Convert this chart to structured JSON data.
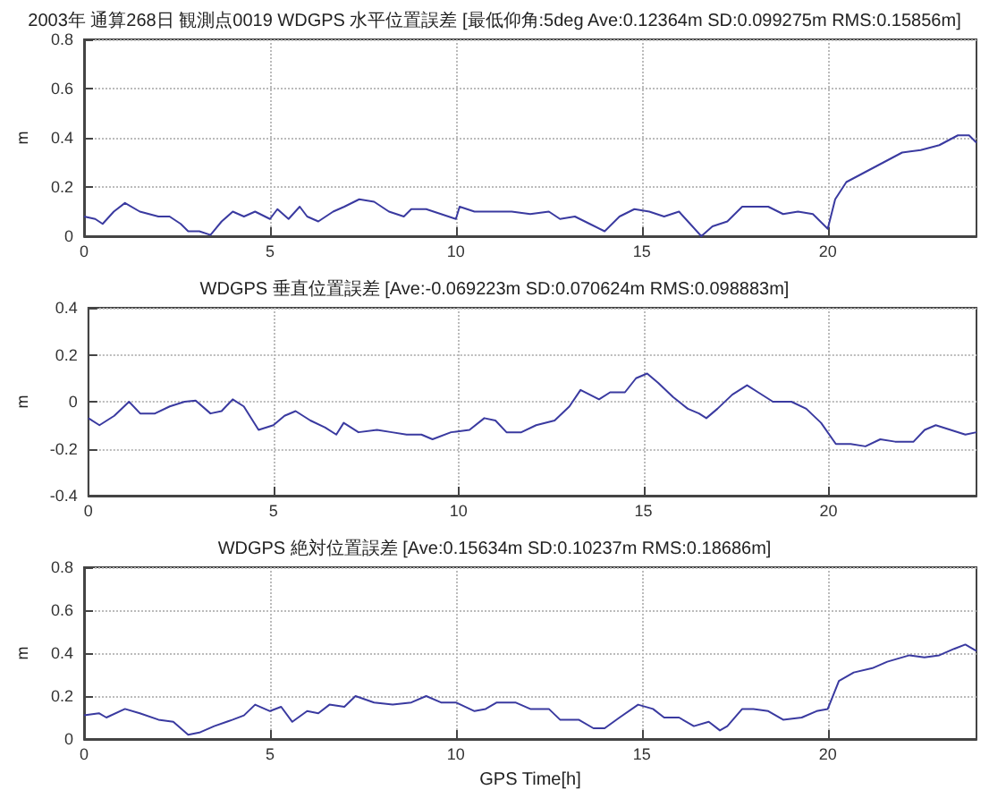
{
  "chart_data": [
    {
      "type": "line",
      "title": "2003年 通算268日 観測点0019 WDGPS 水平位置誤差 [最低仰角:5deg Ave:0.12364m SD:0.099275m RMS:0.15856m]",
      "ylabel": "m",
      "xlim": [
        0,
        24
      ],
      "xticks": [
        0,
        5,
        10,
        15,
        20
      ],
      "ylim": [
        0,
        0.8
      ],
      "yticks": [
        0,
        0.2,
        0.4,
        0.6,
        0.8
      ],
      "grid": true,
      "series": [
        {
          "color": "#3a3aa0",
          "x": [
            0,
            0.3,
            0.5,
            0.8,
            1.1,
            1.5,
            2,
            2.3,
            2.6,
            2.8,
            3.1,
            3.4,
            3.7,
            4,
            4.3,
            4.6,
            5,
            5.2,
            5.5,
            5.8,
            6,
            6.3,
            6.7,
            7,
            7.4,
            7.8,
            8.2,
            8.6,
            8.8,
            9.2,
            9.6,
            10,
            10.1,
            10.5,
            11,
            11.5,
            12,
            12.5,
            12.8,
            13.2,
            13.6,
            14,
            14.4,
            14.8,
            15.2,
            15.6,
            16,
            16.3,
            16.6,
            16.9,
            17.3,
            17.7,
            18,
            18.4,
            18.8,
            19.2,
            19.6,
            20,
            20.2,
            20.5,
            21,
            21.5,
            22,
            22.5,
            23,
            23.5,
            23.8,
            24
          ],
          "values": [
            0.08,
            0.07,
            0.05,
            0.1,
            0.135,
            0.1,
            0.08,
            0.08,
            0.05,
            0.02,
            0.02,
            0.005,
            0.06,
            0.1,
            0.08,
            0.1,
            0.07,
            0.11,
            0.07,
            0.12,
            0.08,
            0.06,
            0.1,
            0.12,
            0.15,
            0.14,
            0.1,
            0.08,
            0.11,
            0.11,
            0.09,
            0.07,
            0.12,
            0.1,
            0.1,
            0.1,
            0.09,
            0.1,
            0.07,
            0.08,
            0.05,
            0.02,
            0.08,
            0.11,
            0.1,
            0.08,
            0.1,
            0.05,
            0.0,
            0.04,
            0.06,
            0.12,
            0.12,
            0.12,
            0.09,
            0.1,
            0.09,
            0.03,
            0.15,
            0.22,
            0.26,
            0.3,
            0.34,
            0.35,
            0.37,
            0.41,
            0.41,
            0.38
          ]
        }
      ]
    },
    {
      "type": "line",
      "title": "WDGPS 垂直位置誤差 [Ave:-0.069223m SD:0.070624m RMS:0.098883m]",
      "ylabel": "m",
      "xlim": [
        0,
        24
      ],
      "xticks": [
        0,
        5,
        10,
        15,
        20
      ],
      "ylim": [
        -0.4,
        0.4
      ],
      "yticks": [
        -0.4,
        -0.2,
        0,
        0.2,
        0.4
      ],
      "grid": true,
      "series": [
        {
          "color": "#3a3aa0",
          "x": [
            0,
            0.3,
            0.7,
            1.1,
            1.4,
            1.8,
            2.2,
            2.6,
            2.9,
            3.3,
            3.6,
            3.9,
            4.2,
            4.6,
            5,
            5.3,
            5.6,
            6,
            6.4,
            6.7,
            6.9,
            7.3,
            7.8,
            8.2,
            8.6,
            9,
            9.3,
            9.8,
            10.3,
            10.7,
            11,
            11.3,
            11.7,
            12.1,
            12.6,
            13,
            13.3,
            13.8,
            14.1,
            14.5,
            14.8,
            15.1,
            15.4,
            15.8,
            16.2,
            16.5,
            16.7,
            17,
            17.4,
            17.8,
            18.1,
            18.5,
            19,
            19.4,
            19.8,
            20.2,
            20.6,
            21,
            21.4,
            21.8,
            22.3,
            22.6,
            22.9,
            23.3,
            23.7,
            24
          ],
          "values": [
            -0.07,
            -0.1,
            -0.06,
            0.0,
            -0.05,
            -0.05,
            -0.02,
            0.0,
            0.005,
            -0.05,
            -0.04,
            0.01,
            -0.02,
            -0.12,
            -0.1,
            -0.06,
            -0.04,
            -0.08,
            -0.11,
            -0.14,
            -0.09,
            -0.13,
            -0.12,
            -0.13,
            -0.14,
            -0.14,
            -0.16,
            -0.13,
            -0.12,
            -0.07,
            -0.08,
            -0.13,
            -0.13,
            -0.1,
            -0.08,
            -0.02,
            0.05,
            0.01,
            0.04,
            0.04,
            0.1,
            0.12,
            0.08,
            0.02,
            -0.03,
            -0.05,
            -0.07,
            -0.03,
            0.03,
            0.07,
            0.04,
            0.0,
            0.0,
            -0.03,
            -0.09,
            -0.18,
            -0.18,
            -0.19,
            -0.16,
            -0.17,
            -0.17,
            -0.12,
            -0.1,
            -0.12,
            -0.14,
            -0.13
          ]
        }
      ]
    },
    {
      "type": "line",
      "title": "WDGPS 絶対位置誤差 [Ave:0.15634m SD:0.10237m RMS:0.18686m]",
      "xlabel": "GPS Time[h]",
      "ylabel": "m",
      "xlim": [
        0,
        24
      ],
      "xticks": [
        0,
        5,
        10,
        15,
        20
      ],
      "ylim": [
        0,
        0.8
      ],
      "yticks": [
        0,
        0.2,
        0.4,
        0.6,
        0.8
      ],
      "grid": true,
      "series": [
        {
          "color": "#3a3aa0",
          "x": [
            0,
            0.4,
            0.6,
            1.1,
            1.5,
            2,
            2.4,
            2.8,
            3.1,
            3.5,
            4,
            4.3,
            4.6,
            5,
            5.3,
            5.6,
            6,
            6.3,
            6.6,
            7,
            7.3,
            7.8,
            8.3,
            8.8,
            9.2,
            9.6,
            10,
            10.5,
            10.8,
            11.1,
            11.6,
            12,
            12.5,
            12.8,
            13.3,
            13.7,
            14,
            14.4,
            14.9,
            15.3,
            15.6,
            16,
            16.4,
            16.8,
            17.1,
            17.3,
            17.7,
            18,
            18.4,
            18.8,
            19.3,
            19.7,
            20,
            20.3,
            20.7,
            21.2,
            21.6,
            22.2,
            22.6,
            23,
            23.4,
            23.7,
            24
          ],
          "values": [
            0.11,
            0.12,
            0.1,
            0.14,
            0.12,
            0.09,
            0.08,
            0.02,
            0.03,
            0.06,
            0.09,
            0.11,
            0.16,
            0.13,
            0.15,
            0.08,
            0.13,
            0.12,
            0.16,
            0.15,
            0.2,
            0.17,
            0.16,
            0.17,
            0.2,
            0.17,
            0.17,
            0.13,
            0.14,
            0.17,
            0.17,
            0.14,
            0.14,
            0.09,
            0.09,
            0.05,
            0.05,
            0.1,
            0.16,
            0.14,
            0.1,
            0.1,
            0.06,
            0.08,
            0.04,
            0.06,
            0.14,
            0.14,
            0.13,
            0.09,
            0.1,
            0.13,
            0.14,
            0.27,
            0.31,
            0.33,
            0.36,
            0.39,
            0.38,
            0.39,
            0.42,
            0.44,
            0.41
          ]
        }
      ]
    }
  ]
}
